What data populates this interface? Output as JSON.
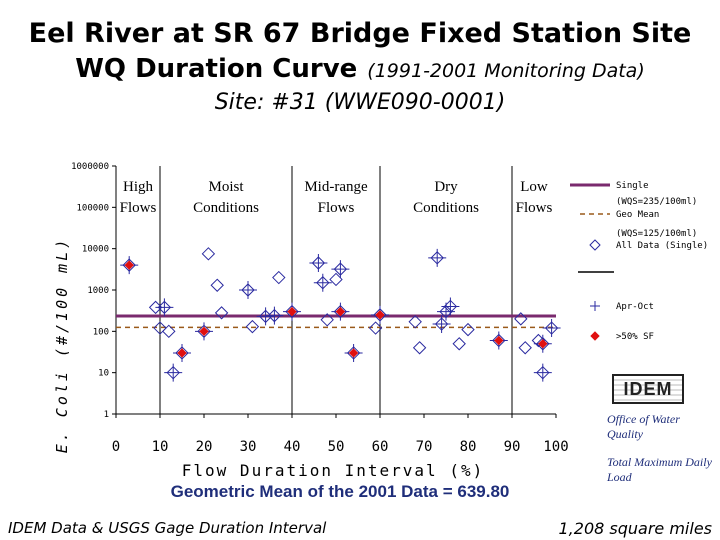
{
  "title": {
    "line1": "Eel River at SR 67 Bridge Fixed Station Site",
    "line2": "WQ Duration Curve",
    "line2_sub": "(1991-2001 Monitoring Data)",
    "line3": "Site: #31 (WWE090-0001)"
  },
  "footer": {
    "geo_mean": "Geometric Mean of the 2001 Data = 639.80",
    "source": "IDEM Data & USGS Gage Duration Interval",
    "area": "1,208 square miles"
  },
  "logo": {
    "text": "IDEM"
  },
  "notes": {
    "office": "Office of Water Quality",
    "tmdl": "Total Maximum Daily Load"
  },
  "colors": {
    "standard": "#7a2a6e",
    "geomean": "#9a5a1a",
    "marker": "#2a2aa0",
    "red": "#e01010"
  },
  "chart_data": {
    "type": "scatter",
    "xlabel": "Flow Duration Interval (%)",
    "ylabel": "E. Coli (#/100 mL)",
    "xlim": [
      0,
      100
    ],
    "ylim": [
      1,
      1000000
    ],
    "yscale": "log",
    "xticks": [
      "0",
      "10",
      "20",
      "30",
      "40",
      "50",
      "60",
      "70",
      "80",
      "90",
      "100"
    ],
    "yticks": [
      "1",
      "10",
      "100",
      "1000",
      "10000",
      "100000",
      "1000000"
    ],
    "zones": [
      {
        "label": "High Flows",
        "from": 0,
        "to": 10
      },
      {
        "label": "Moist Conditions",
        "from": 10,
        "to": 40
      },
      {
        "label": "Mid-range Flows",
        "from": 40,
        "to": 60
      },
      {
        "label": "Dry Conditions",
        "from": 60,
        "to": 90
      },
      {
        "label": "Low Flows",
        "from": 90,
        "to": 100
      }
    ],
    "reference_lines": [
      {
        "name": "Single (WQS=235/100ml)",
        "value": 235,
        "style": "solid"
      },
      {
        "name": "Geo Mean (WQS=125/100ml)",
        "value": 125,
        "style": "dashed"
      }
    ],
    "legend": {
      "position": "right",
      "entries": [
        "Single",
        "(WQS=235/100ml)",
        "Geo Mean",
        "(WQS=125/100ml)",
        "All Data (Single)",
        "Apr-Oct",
        ">50% SF"
      ]
    },
    "series": [
      {
        "name": "All Data (Single)",
        "marker": "diamond",
        "points": [
          [
            3,
            4000
          ],
          [
            9,
            380
          ],
          [
            10,
            120
          ],
          [
            11,
            380
          ],
          [
            12,
            100
          ],
          [
            13,
            10
          ],
          [
            15,
            30
          ],
          [
            20,
            100
          ],
          [
            21,
            7500
          ],
          [
            23,
            1300
          ],
          [
            24,
            280
          ],
          [
            30,
            1000
          ],
          [
            31,
            130
          ],
          [
            34,
            230
          ],
          [
            36,
            240
          ],
          [
            37,
            2000
          ],
          [
            40,
            300
          ],
          [
            46,
            4500
          ],
          [
            47,
            1500
          ],
          [
            48,
            190
          ],
          [
            50,
            1800
          ],
          [
            51,
            3200
          ],
          [
            51,
            300
          ],
          [
            54,
            30
          ],
          [
            59,
            120
          ],
          [
            60,
            250
          ],
          [
            68,
            170
          ],
          [
            69,
            40
          ],
          [
            73,
            6000
          ],
          [
            74,
            150
          ],
          [
            75,
            300
          ],
          [
            76,
            400
          ],
          [
            78,
            50
          ],
          [
            80,
            110
          ],
          [
            87,
            60
          ],
          [
            92,
            200
          ],
          [
            93,
            40
          ],
          [
            96,
            60
          ],
          [
            97,
            50
          ],
          [
            97,
            10
          ],
          [
            99,
            120
          ]
        ]
      },
      {
        "name": "Apr-Oct",
        "marker": "plus",
        "points": [
          [
            3,
            4000
          ],
          [
            11,
            380
          ],
          [
            13,
            10
          ],
          [
            15,
            30
          ],
          [
            20,
            100
          ],
          [
            30,
            1000
          ],
          [
            34,
            230
          ],
          [
            36,
            240
          ],
          [
            40,
            300
          ],
          [
            46,
            4500
          ],
          [
            47,
            1500
          ],
          [
            51,
            3200
          ],
          [
            51,
            300
          ],
          [
            54,
            30
          ],
          [
            60,
            250
          ],
          [
            73,
            6000
          ],
          [
            74,
            150
          ],
          [
            75,
            300
          ],
          [
            76,
            400
          ],
          [
            87,
            60
          ],
          [
            97,
            50
          ],
          [
            97,
            10
          ],
          [
            99,
            120
          ]
        ]
      },
      {
        "name": ">50% SF",
        "marker": "red-diamond",
        "points": [
          [
            3,
            4000
          ],
          [
            15,
            30
          ],
          [
            20,
            100
          ],
          [
            40,
            300
          ],
          [
            51,
            300
          ],
          [
            54,
            30
          ],
          [
            60,
            250
          ],
          [
            87,
            60
          ],
          [
            97,
            50
          ]
        ]
      }
    ]
  }
}
